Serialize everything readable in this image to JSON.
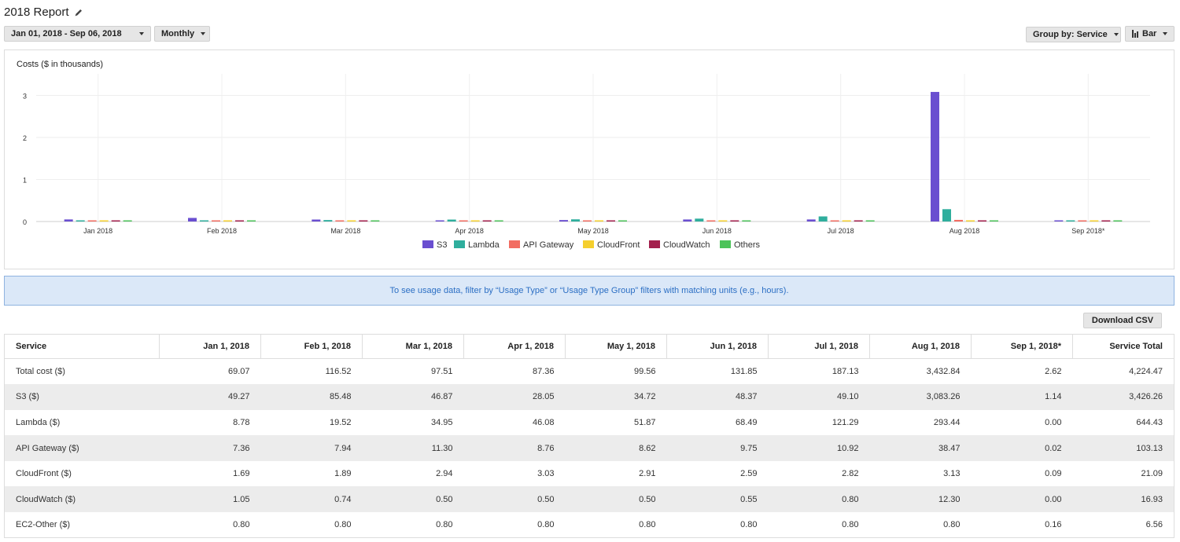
{
  "header": {
    "title": "2018 Report",
    "edit_icon": "pencil-icon"
  },
  "toolbar": {
    "date_range": "Jan 01, 2018 - Sep 06, 2018",
    "granularity": "Monthly",
    "group_by": "Group by: Service",
    "chart_style": "Bar",
    "chart_style_icon": "bar-chart-icon"
  },
  "chart_data": {
    "type": "bar",
    "ylabel": "Costs ($ in thousands)",
    "categories": [
      "Jan 2018",
      "Feb 2018",
      "Mar 2018",
      "Apr 2018",
      "May 2018",
      "Jun 2018",
      "Jul 2018",
      "Aug 2018",
      "Sep 2018*"
    ],
    "ylim": [
      0,
      3.5
    ],
    "yticks": [
      0,
      1,
      2,
      3
    ],
    "grid": true,
    "legend": "bottom-center",
    "series": [
      {
        "name": "S3",
        "color": "#6a4fd0",
        "values": [
          0.04927,
          0.08548,
          0.04687,
          0.02805,
          0.03472,
          0.04837,
          0.0491,
          3.08326,
          0.00114
        ]
      },
      {
        "name": "Lambda",
        "color": "#2fae9d",
        "values": [
          0.00878,
          0.01952,
          0.03495,
          0.04608,
          0.05187,
          0.06849,
          0.12129,
          0.29344,
          0.0
        ]
      },
      {
        "name": "API Gateway",
        "color": "#f26d62",
        "values": [
          0.00736,
          0.00794,
          0.0113,
          0.00876,
          0.00862,
          0.00975,
          0.01092,
          0.03847,
          2e-05
        ]
      },
      {
        "name": "CloudFront",
        "color": "#f5cf2e",
        "values": [
          0.00169,
          0.00189,
          0.00294,
          0.00303,
          0.00291,
          0.00259,
          0.00282,
          0.00313,
          9e-05
        ]
      },
      {
        "name": "CloudWatch",
        "color": "#a3204d",
        "values": [
          0.00105,
          0.00074,
          0.0005,
          0.0005,
          0.0005,
          0.00055,
          0.0008,
          0.0123,
          0.0
        ]
      },
      {
        "name": "Others",
        "color": "#4cc35a",
        "values": [
          0.00162,
          0.00165,
          0.00205,
          0.00189,
          0.00176,
          0.00162,
          0.0021,
          0.00214,
          0.00039
        ]
      }
    ]
  },
  "banner": {
    "text": "To see usage data, filter by “Usage Type” or “Usage Type Group” filters with matching units (e.g., hours)."
  },
  "table": {
    "download_label": "Download CSV",
    "headers": [
      "Service",
      "Jan 1, 2018",
      "Feb 1, 2018",
      "Mar 1, 2018",
      "Apr 1, 2018",
      "May 1, 2018",
      "Jun 1, 2018",
      "Jul 1, 2018",
      "Aug 1, 2018",
      "Sep 1, 2018*",
      "Service Total"
    ],
    "rows": [
      [
        "Total cost ($)",
        "69.07",
        "116.52",
        "97.51",
        "87.36",
        "99.56",
        "131.85",
        "187.13",
        "3,432.84",
        "2.62",
        "4,224.47"
      ],
      [
        "S3 ($)",
        "49.27",
        "85.48",
        "46.87",
        "28.05",
        "34.72",
        "48.37",
        "49.10",
        "3,083.26",
        "1.14",
        "3,426.26"
      ],
      [
        "Lambda ($)",
        "8.78",
        "19.52",
        "34.95",
        "46.08",
        "51.87",
        "68.49",
        "121.29",
        "293.44",
        "0.00",
        "644.43"
      ],
      [
        "API Gateway ($)",
        "7.36",
        "7.94",
        "11.30",
        "8.76",
        "8.62",
        "9.75",
        "10.92",
        "38.47",
        "0.02",
        "103.13"
      ],
      [
        "CloudFront ($)",
        "1.69",
        "1.89",
        "2.94",
        "3.03",
        "2.91",
        "2.59",
        "2.82",
        "3.13",
        "0.09",
        "21.09"
      ],
      [
        "CloudWatch ($)",
        "1.05",
        "0.74",
        "0.50",
        "0.50",
        "0.50",
        "0.55",
        "0.80",
        "12.30",
        "0.00",
        "16.93"
      ],
      [
        "EC2-Other ($)",
        "0.80",
        "0.80",
        "0.80",
        "0.80",
        "0.80",
        "0.80",
        "0.80",
        "0.80",
        "0.16",
        "6.56"
      ]
    ]
  }
}
